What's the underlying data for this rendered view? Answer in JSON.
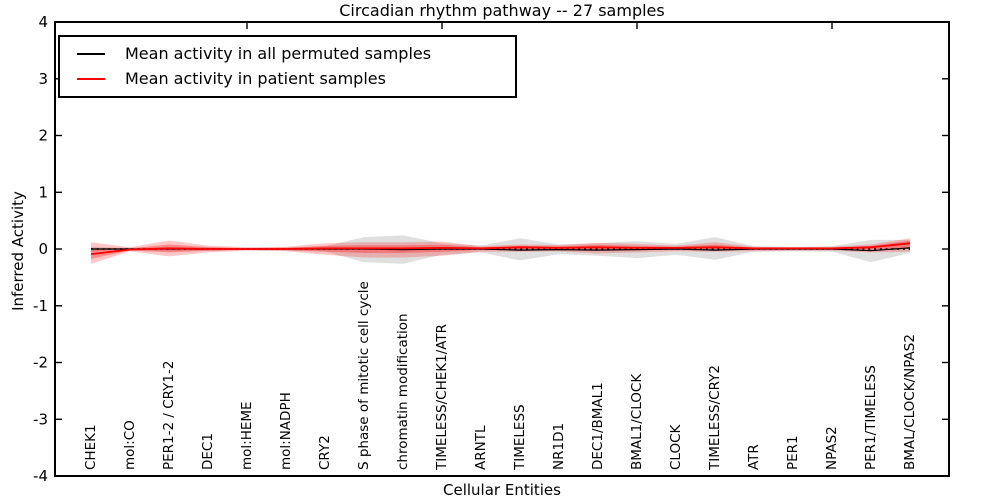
{
  "chart_data": {
    "type": "line",
    "title": "Circadian rhythm pathway -- 27 samples",
    "xlabel": "Cellular Entities",
    "ylabel": "Inferred Activity",
    "ylim": [
      -4,
      4
    ],
    "yticks": [
      4,
      3,
      2,
      1,
      0,
      -1,
      -2,
      -3,
      -4
    ],
    "grid": false,
    "legend_position": "upper left",
    "zero_reference_line": "dotted black line at y=0",
    "categories": [
      "CHEK1",
      "mol:CO",
      "PER1-2 / CRY1-2",
      "DEC1",
      "mol:HEME",
      "mol:NADPH",
      "CRY2",
      "S phase of mitotic cell cycle",
      "chromatin modification",
      "TIMELESS/CHEK1/ATR",
      "ARNTL",
      "TIMELESS",
      "NR1D1",
      "DEC1/BMAL1",
      "BMAL1/CLOCK",
      "CLOCK",
      "TIMELESS/CRY2",
      "ATR",
      "PER1",
      "NPAS2",
      "PER1/TIMELESS",
      "BMAL/CLOCK/NPAS2"
    ],
    "series": [
      {
        "name": "Mean activity in all permuted samples",
        "color": "#000000",
        "style": "solid",
        "values": [
          0,
          0,
          0,
          0,
          0,
          0,
          0,
          0,
          -0.01,
          0,
          0,
          -0.02,
          -0.01,
          -0.02,
          -0.01,
          0,
          -0.02,
          0,
          0,
          0,
          -0.03,
          0.02
        ],
        "band_low": [
          -0.04,
          -0.02,
          -0.04,
          -0.03,
          -0.02,
          -0.03,
          -0.05,
          -0.23,
          -0.26,
          -0.1,
          -0.06,
          -0.2,
          -0.09,
          -0.12,
          -0.16,
          -0.1,
          -0.19,
          -0.05,
          -0.04,
          -0.05,
          -0.23,
          -0.07
        ],
        "band_high": [
          0.04,
          0.02,
          0.04,
          0.03,
          0.02,
          0.03,
          0.05,
          0.21,
          0.24,
          0.1,
          0.06,
          0.19,
          0.08,
          0.1,
          0.14,
          0.09,
          0.21,
          0.05,
          0.04,
          0.05,
          0.16,
          0.16
        ],
        "band_color": "#c8c8c8"
      },
      {
        "name": "Mean activity in patient samples",
        "color": "#ff0000",
        "style": "solid",
        "values": [
          -0.09,
          -0.01,
          0.01,
          0,
          0,
          0,
          0.01,
          0.01,
          0.01,
          0.02,
          0.01,
          0.03,
          0.02,
          0.03,
          0.02,
          0.02,
          0.03,
          0.01,
          0.01,
          0.01,
          0.03,
          0.1
        ],
        "band_low": [
          -0.26,
          -0.04,
          -0.13,
          -0.06,
          -0.03,
          -0.04,
          -0.1,
          -0.15,
          -0.15,
          -0.12,
          -0.05,
          -0.05,
          -0.04,
          -0.08,
          -0.06,
          -0.04,
          -0.05,
          -0.04,
          -0.03,
          -0.03,
          -0.06,
          -0.05
        ],
        "band_high": [
          0.12,
          0.03,
          0.15,
          0.06,
          0.03,
          0.04,
          0.1,
          0.12,
          0.12,
          0.13,
          0.05,
          0.08,
          0.07,
          0.11,
          0.09,
          0.06,
          0.12,
          0.04,
          0.03,
          0.04,
          0.08,
          0.19
        ],
        "band_color": "#ff9999"
      }
    ]
  }
}
